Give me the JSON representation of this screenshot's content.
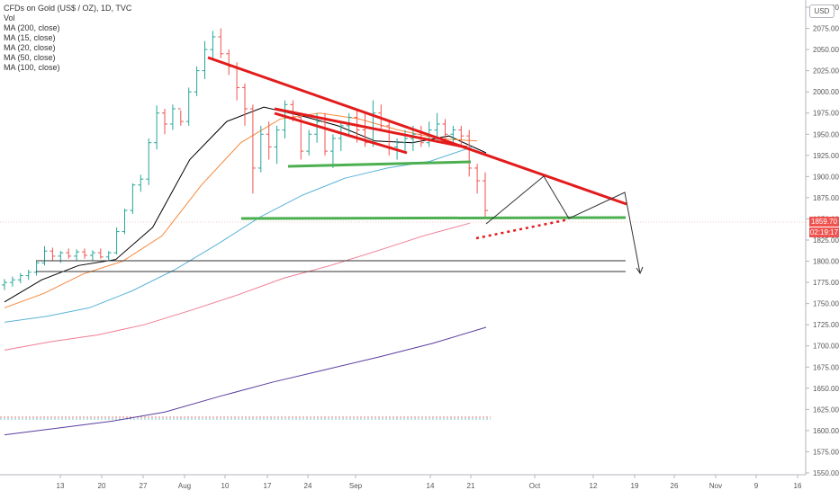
{
  "header": {
    "symbol_line": "CFDs on Gold (US$ / OZ), 1D, TVC",
    "vol_label": "Vol",
    "ma_labels": [
      "MA (200, close)",
      "MA (15, close)",
      "MA (20, close)",
      "MA (50, close)",
      "MA (100, close)"
    ]
  },
  "currency": "USD",
  "current_price": "1859.70",
  "countdown": "02:19:17",
  "chart_data": {
    "type": "candlestick",
    "title": "CFDs on Gold (US$ / OZ), 1D, TVC",
    "y_ticks": [
      2100,
      2075,
      2050,
      2025,
      2000,
      1975,
      1950,
      1925,
      1900,
      1875,
      1850,
      1825,
      1800,
      1775,
      1750,
      1725,
      1700,
      1675,
      1650,
      1625,
      1600,
      1575,
      1550
    ],
    "y_tick_labels": [
      "2100.00",
      "2075.00",
      "2050.00",
      "2025.00",
      "2000.00",
      "1975.00",
      "1950.00",
      "1925.00",
      "1900.00",
      "1875.00",
      "1850.00",
      "1825.00",
      "1800.00",
      "1775.00",
      "1750.00",
      "1725.00",
      "1700.00",
      "1675.00",
      "1650.00",
      "1625.00",
      "1600.00",
      "1575.00",
      "1550.00"
    ],
    "x_labels": [
      "13",
      "20",
      "27",
      "Aug",
      "10",
      "17",
      "24",
      "Sep",
      "14",
      "21",
      "Oct",
      "12",
      "19",
      "26",
      "Nov",
      "9",
      "16"
    ],
    "bars_ohlc": [
      [
        1772,
        1779,
        1766,
        1775
      ],
      [
        1775,
        1782,
        1770,
        1778
      ],
      [
        1778,
        1786,
        1774,
        1783
      ],
      [
        1783,
        1790,
        1778,
        1787
      ],
      [
        1787,
        1800,
        1783,
        1798
      ],
      [
        1798,
        1818,
        1795,
        1812
      ],
      [
        1812,
        1816,
        1800,
        1806
      ],
      [
        1806,
        1812,
        1798,
        1810
      ],
      [
        1810,
        1815,
        1803,
        1806
      ],
      [
        1806,
        1814,
        1801,
        1811
      ],
      [
        1811,
        1815,
        1803,
        1807
      ],
      [
        1807,
        1813,
        1800,
        1810
      ],
      [
        1810,
        1815,
        1803,
        1805
      ],
      [
        1805,
        1812,
        1800,
        1810
      ],
      [
        1810,
        1840,
        1808,
        1835
      ],
      [
        1835,
        1862,
        1832,
        1860
      ],
      [
        1860,
        1892,
        1856,
        1890
      ],
      [
        1890,
        1902,
        1882,
        1897
      ],
      [
        1897,
        1945,
        1890,
        1940
      ],
      [
        1940,
        1984,
        1932,
        1975
      ],
      [
        1975,
        1980,
        1950,
        1962
      ],
      [
        1962,
        1985,
        1955,
        1980
      ],
      [
        1980,
        1978,
        1960,
        1965
      ],
      [
        1965,
        2005,
        1960,
        2000
      ],
      [
        2000,
        2030,
        1995,
        2025
      ],
      [
        2025,
        2060,
        2015,
        2050
      ],
      [
        2050,
        2072,
        2040,
        2065
      ],
      [
        2065,
        2075,
        2040,
        2045
      ],
      [
        2045,
        2050,
        2020,
        2030
      ],
      [
        2030,
        2035,
        1990,
        2005
      ],
      [
        2005,
        2010,
        1960,
        1980
      ],
      [
        1980,
        1985,
        1880,
        1910
      ],
      [
        1910,
        1960,
        1905,
        1950
      ],
      [
        1950,
        1965,
        1920,
        1935
      ],
      [
        1935,
        1960,
        1915,
        1955
      ],
      [
        1955,
        1990,
        1945,
        1985
      ],
      [
        1985,
        1990,
        1965,
        1970
      ],
      [
        1970,
        1975,
        1920,
        1930
      ],
      [
        1930,
        1955,
        1925,
        1950
      ],
      [
        1950,
        1975,
        1940,
        1965
      ],
      [
        1965,
        1975,
        1925,
        1930
      ],
      [
        1930,
        1950,
        1910,
        1945
      ],
      [
        1945,
        1965,
        1930,
        1960
      ],
      [
        1960,
        1975,
        1950,
        1970
      ],
      [
        1970,
        1980,
        1940,
        1955
      ],
      [
        1955,
        1975,
        1935,
        1940
      ],
      [
        1940,
        1990,
        1935,
        1975
      ],
      [
        1975,
        1985,
        1955,
        1960
      ],
      [
        1960,
        1965,
        1925,
        1935
      ],
      [
        1935,
        1945,
        1920,
        1940
      ],
      [
        1940,
        1955,
        1930,
        1945
      ],
      [
        1945,
        1960,
        1930,
        1950
      ],
      [
        1950,
        1960,
        1935,
        1940
      ],
      [
        1940,
        1965,
        1935,
        1955
      ],
      [
        1955,
        1975,
        1940,
        1962
      ],
      [
        1962,
        1968,
        1945,
        1950
      ],
      [
        1950,
        1960,
        1940,
        1955
      ],
      [
        1955,
        1960,
        1935,
        1948
      ],
      [
        1948,
        1955,
        1900,
        1910
      ],
      [
        1910,
        1915,
        1880,
        1895
      ],
      [
        1895,
        1905,
        1850,
        1860
      ]
    ],
    "ma_series": [
      {
        "name": "MA (200, close)",
        "color": "#5b3d9e",
        "values": [
          1595,
          1603,
          1611,
          1622,
          1640,
          1657,
          1672,
          1687,
          1703,
          1722
        ]
      },
      {
        "name": "MA (15, close)",
        "color": "#000000",
        "values": [
          1752,
          1778,
          1795,
          1802,
          1840,
          1920,
          1965,
          1982,
          1972,
          1960,
          1942,
          1940,
          1948,
          1928
        ]
      },
      {
        "name": "MA (20, close)",
        "color": "#f5883b",
        "values": [
          1745,
          1762,
          1785,
          1800,
          1830,
          1890,
          1940,
          1968,
          1975,
          1968,
          1955,
          1945,
          1942
        ]
      },
      {
        "name": "MA (50, close)",
        "color": "#5bb4d8",
        "values": [
          1728,
          1735,
          1745,
          1765,
          1790,
          1820,
          1852,
          1878,
          1898,
          1910,
          1918,
          1935
        ]
      },
      {
        "name": "MA (100, close)",
        "color": "#f07d93",
        "values": [
          1695,
          1705,
          1713,
          1725,
          1742,
          1760,
          1780,
          1795,
          1812,
          1830,
          1845
        ]
      }
    ],
    "grid": false,
    "legend_position": "top-left"
  }
}
